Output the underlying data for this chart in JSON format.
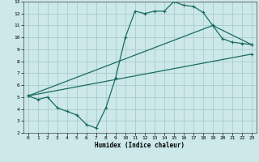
{
  "xlabel": "Humidex (Indice chaleur)",
  "bg_color": "#cce8e8",
  "grid_color": "#aacccc",
  "line_color": "#1a6b5e",
  "xlim": [
    -0.5,
    23.5
  ],
  "ylim": [
    2,
    13
  ],
  "xticks": [
    0,
    1,
    2,
    3,
    4,
    5,
    6,
    7,
    8,
    9,
    10,
    11,
    12,
    13,
    14,
    15,
    16,
    17,
    18,
    19,
    20,
    21,
    22,
    23
  ],
  "yticks": [
    2,
    3,
    4,
    5,
    6,
    7,
    8,
    9,
    10,
    11,
    12,
    13
  ],
  "line1_x": [
    0,
    1,
    2,
    3,
    4,
    5,
    6,
    7,
    8,
    9,
    10,
    11,
    12,
    13,
    14,
    15,
    16,
    17,
    18,
    19,
    20,
    21,
    22,
    23
  ],
  "line1_y": [
    5.1,
    4.8,
    5.0,
    4.1,
    3.8,
    3.5,
    2.7,
    2.4,
    4.1,
    6.6,
    10.0,
    12.2,
    12.0,
    12.2,
    12.2,
    13.0,
    12.7,
    12.6,
    12.1,
    11.0,
    9.9,
    9.6,
    9.5,
    9.4
  ],
  "line2_x": [
    0,
    19,
    23
  ],
  "line2_y": [
    5.1,
    11.0,
    9.4
  ],
  "line3_x": [
    0,
    23
  ],
  "line3_y": [
    5.1,
    8.6
  ],
  "marker": "+",
  "markersize": 3,
  "linewidth": 0.9,
  "tick_fontsize": 4.5,
  "xlabel_fontsize": 5.5
}
